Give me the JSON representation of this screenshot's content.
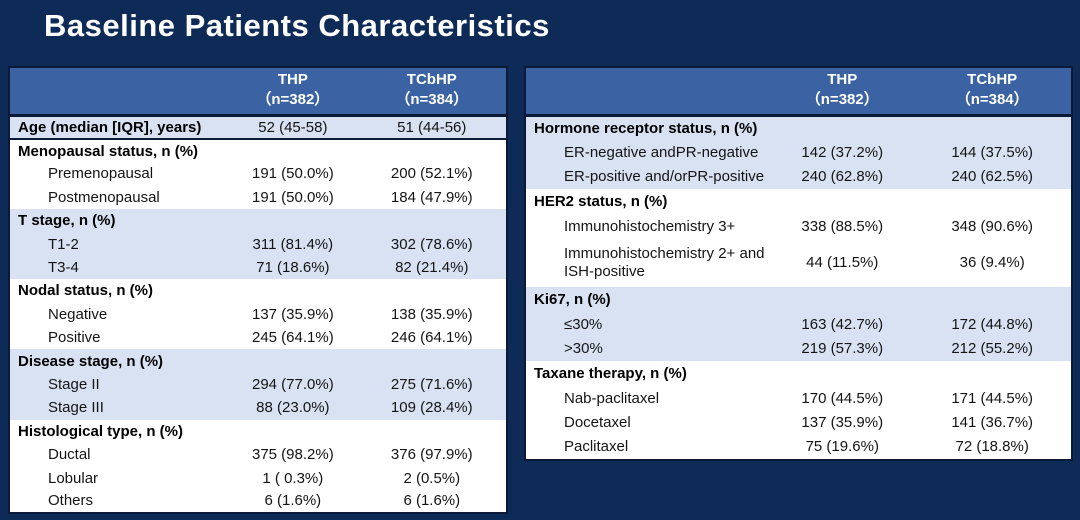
{
  "page": {
    "title": "Baseline Patients Characteristics",
    "colors": {
      "background": "#0E2A57",
      "table_header_blue": "#3B63A4",
      "band_light_blue": "#D9E2F3",
      "band_white": "#FFFFFF",
      "border_dark": "#0C1A38",
      "title_text": "#FFFFFF",
      "body_text": "#141414"
    }
  },
  "tables": [
    {
      "name": "patient-characteristics-left",
      "columns": [
        {
          "name": "THP",
          "sub": "（n=382）"
        },
        {
          "name": "TCbHP",
          "sub": "（n=384）"
        }
      ],
      "rows": [
        {
          "label": "Age (median [IQR], years)",
          "section": true,
          "band": "light",
          "rule_below": true,
          "values": [
            "52 (45-58)",
            "51 (44-56)"
          ]
        },
        {
          "label": "Menopausal status, n (%)",
          "section": true,
          "band": "white",
          "values": [
            "",
            ""
          ]
        },
        {
          "label": "Premenopausal",
          "indent": true,
          "band": "white",
          "values": [
            "191 (50.0%)",
            "200 (52.1%)"
          ]
        },
        {
          "label": "Postmenopausal",
          "indent": true,
          "band": "white",
          "values": [
            "191 (50.0%)",
            "184 (47.9%)"
          ]
        },
        {
          "label": "T stage, n (%)",
          "section": true,
          "band": "light",
          "values": [
            "",
            ""
          ]
        },
        {
          "label": "T1-2",
          "indent": true,
          "band": "light",
          "values": [
            "311 (81.4%)",
            "302 (78.6%)"
          ]
        },
        {
          "label": "T3-4",
          "indent": true,
          "band": "light",
          "values": [
            "71 (18.6%)",
            "82 (21.4%)"
          ]
        },
        {
          "label": "Nodal status, n (%)",
          "section": true,
          "band": "white",
          "values": [
            "",
            ""
          ]
        },
        {
          "label": "Negative",
          "indent": true,
          "band": "white",
          "values": [
            "137 (35.9%)",
            "138 (35.9%)"
          ]
        },
        {
          "label": "Positive",
          "indent": true,
          "band": "white",
          "values": [
            "245 (64.1%)",
            "246 (64.1%)"
          ]
        },
        {
          "label": "Disease stage, n (%)",
          "section": true,
          "band": "light",
          "values": [
            "",
            ""
          ]
        },
        {
          "label": "Stage II",
          "indent": true,
          "band": "light",
          "values": [
            "294 (77.0%)",
            "275 (71.6%)"
          ]
        },
        {
          "label": "Stage III",
          "indent": true,
          "band": "light",
          "values": [
            "88 (23.0%)",
            "109 (28.4%)"
          ]
        },
        {
          "label": "Histological type, n (%)",
          "section": true,
          "band": "white",
          "values": [
            "",
            ""
          ]
        },
        {
          "label": "Ductal",
          "indent": true,
          "band": "white",
          "values": [
            "375 (98.2%)",
            "376 (97.9%)"
          ]
        },
        {
          "label": "Lobular",
          "indent": true,
          "band": "white",
          "values": [
            "1 ( 0.3%)",
            "2 (0.5%)"
          ]
        },
        {
          "label": "Others",
          "indent": true,
          "band": "white",
          "values": [
            "6 (1.6%)",
            "6 (1.6%)"
          ]
        }
      ]
    },
    {
      "name": "patient-characteristics-right",
      "columns": [
        {
          "name": "THP",
          "sub": "（n=382）"
        },
        {
          "name": "TCbHP",
          "sub": "（n=384）"
        }
      ],
      "rows": [
        {
          "label": "Hormone receptor status, n (%)",
          "section": true,
          "band": "light",
          "values": [
            "",
            ""
          ]
        },
        {
          "label": "ER-negative andPR-negative",
          "indent": true,
          "band": "light",
          "values": [
            "142 (37.2%)",
            "144 (37.5%)"
          ]
        },
        {
          "label": "ER-positive and/orPR-positive",
          "indent": true,
          "band": "light",
          "values": [
            "240 (62.8%)",
            "240 (62.5%)"
          ]
        },
        {
          "label": "HER2 status, n (%)",
          "section": true,
          "band": "white",
          "values": [
            "",
            ""
          ]
        },
        {
          "label": "Immunohistochemistry 3+",
          "indent": true,
          "band": "white",
          "values": [
            "338 (88.5%)",
            "348 (90.6%)"
          ]
        },
        {
          "label": "Immunohistochemistry 2+ and",
          "label2": "ISH-positive",
          "indent": true,
          "band": "white",
          "tall": true,
          "values": [
            "44 (11.5%)",
            "36 (9.4%)"
          ]
        },
        {
          "label": "Ki67, n (%)",
          "section": true,
          "band": "light",
          "values": [
            "",
            ""
          ]
        },
        {
          "label": "≤30%",
          "indent": true,
          "band": "light",
          "values": [
            "163 (42.7%)",
            "172 (44.8%)"
          ]
        },
        {
          "label": ">30%",
          "indent": true,
          "band": "light",
          "values": [
            "219 (57.3%)",
            "212 (55.2%)"
          ]
        },
        {
          "label": "Taxane therapy, n (%)",
          "section": true,
          "band": "white",
          "values": [
            "",
            ""
          ]
        },
        {
          "label": "Nab-paclitaxel",
          "indent": true,
          "band": "white",
          "values": [
            "170 (44.5%)",
            "171 (44.5%)"
          ]
        },
        {
          "label": "Docetaxel",
          "indent": true,
          "band": "white",
          "values": [
            "137 (35.9%)",
            "141 (36.7%)"
          ]
        },
        {
          "label": "Paclitaxel",
          "indent": true,
          "band": "white",
          "values": [
            "75 (19.6%)",
            "72 (18.8%)"
          ]
        }
      ]
    }
  ]
}
